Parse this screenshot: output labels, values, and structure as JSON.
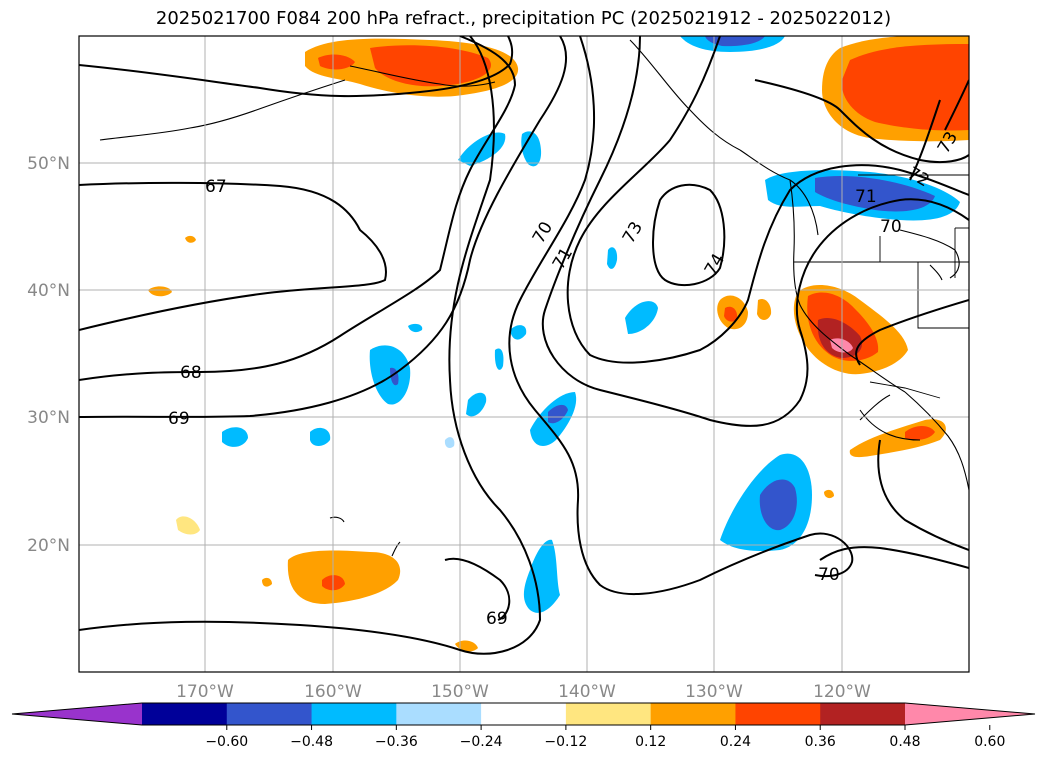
{
  "title": "2025021700 F084 200 hPa refract., precipitation PC (2025021912 - 2025022012)",
  "latitude_labels": [
    "50°N",
    "40°N",
    "30°N",
    "20°N"
  ],
  "longitude_labels": [
    "170°W",
    "160°W",
    "150°W",
    "140°W",
    "130°W",
    "120°W"
  ],
  "contour_labels": [
    "67",
    "68",
    "69",
    "70",
    "71",
    "73",
    "74",
    "71",
    "70",
    "72",
    "73",
    "69",
    "70"
  ],
  "colorbar": {
    "colors": [
      "#9933cc",
      "#000099",
      "#3355cc",
      "#00bbff",
      "#aaddff",
      "#ffffff",
      "#ffe680",
      "#ffa000",
      "#ff4400",
      "#b22222",
      "#ff88aa"
    ],
    "tick_labels": [
      "−0.60",
      "−0.48",
      "−0.36",
      "−0.24",
      "−0.12",
      "0.12",
      "0.24",
      "0.36",
      "0.48",
      "0.60"
    ]
  }
}
